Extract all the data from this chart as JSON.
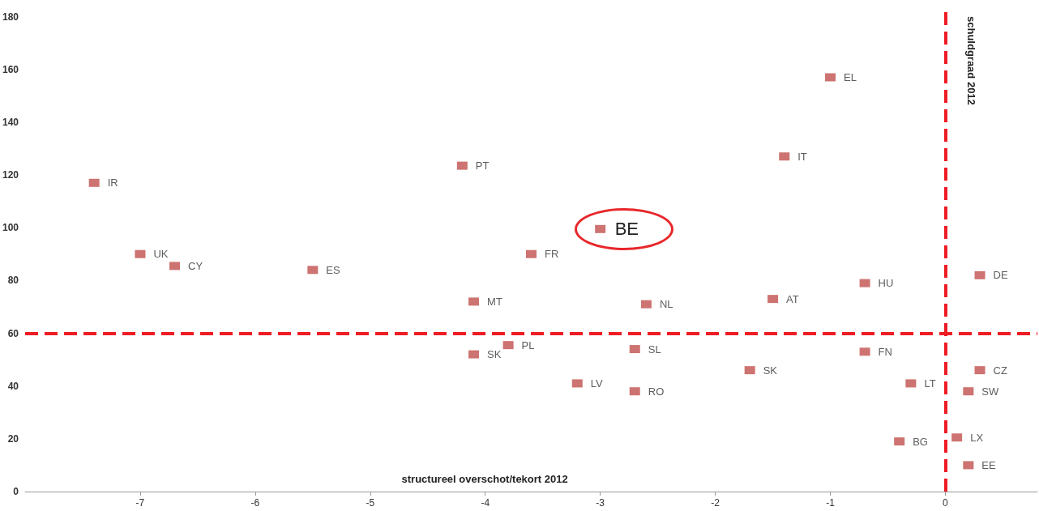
{
  "chart_data": {
    "type": "scatter",
    "xlabel": "structureel overschot/tekort 2012",
    "ylabel": "schuldgraad 2012",
    "xlim": [
      -8,
      0.8
    ],
    "xticks": [
      -7,
      -6,
      -5,
      -4,
      -3,
      -2,
      -1,
      0
    ],
    "ylim": [
      0,
      182
    ],
    "yticks": [
      0,
      20,
      40,
      60,
      80,
      100,
      120,
      140,
      160,
      180
    ],
    "grid": false,
    "legend": false,
    "marker": "square",
    "ref_lines": [
      {
        "axis": "y",
        "value": 60,
        "color": "#ee1c24",
        "line_style": "dashed"
      },
      {
        "axis": "x",
        "value": 0,
        "color": "#ee1c24",
        "line_style": "dashed"
      }
    ],
    "annotations": [
      {
        "text": "BE",
        "x": -3,
        "y": 99.5
      }
    ],
    "series": [
      {
        "name": "IR",
        "color": "#c0504d",
        "x": [
          -7.4
        ],
        "values": [
          117
        ]
      },
      {
        "name": "UK",
        "color": "#c0504d",
        "x": [
          -7.0
        ],
        "values": [
          90
        ]
      },
      {
        "name": "CY",
        "color": "#c0504d",
        "x": [
          -6.7
        ],
        "values": [
          85.5
        ]
      },
      {
        "name": "ES",
        "color": "#c0504d",
        "x": [
          -5.5
        ],
        "values": [
          84
        ]
      },
      {
        "name": "PT",
        "color": "#c0504d",
        "x": [
          -4.2
        ],
        "values": [
          123.5
        ]
      },
      {
        "name": "MT",
        "color": "#c0504d",
        "x": [
          -4.1
        ],
        "values": [
          72
        ]
      },
      {
        "name": "SK",
        "color": "#c0504d",
        "x": [
          -4.1
        ],
        "values": [
          52
        ]
      },
      {
        "name": "PL",
        "color": "#c0504d",
        "x": [
          -3.8
        ],
        "values": [
          55.5
        ]
      },
      {
        "name": "FR",
        "color": "#c0504d",
        "x": [
          -3.6
        ],
        "values": [
          90
        ]
      },
      {
        "color": "#c0504d",
        "x": [
          -3.0
        ],
        "values": [
          99.5
        ]
      },
      {
        "name": "LV",
        "color": "#c0504d",
        "x": [
          -3.2
        ],
        "values": [
          41
        ]
      },
      {
        "name": "RO",
        "color": "#c0504d",
        "x": [
          -2.7
        ],
        "values": [
          38
        ]
      },
      {
        "name": "SL",
        "color": "#c0504d",
        "x": [
          -2.7
        ],
        "values": [
          54
        ]
      },
      {
        "name": "NL",
        "color": "#c0504d",
        "x": [
          -2.6
        ],
        "values": [
          71
        ]
      },
      {
        "name": "SK",
        "color": "#c0504d",
        "x": [
          -1.7
        ],
        "values": [
          46
        ]
      },
      {
        "name": "AT",
        "color": "#c0504d",
        "x": [
          -1.5
        ],
        "values": [
          73
        ]
      },
      {
        "name": "IT",
        "color": "#c0504d",
        "x": [
          -1.4
        ],
        "values": [
          127
        ]
      },
      {
        "name": "EL",
        "color": "#c0504d",
        "x": [
          -1.0
        ],
        "values": [
          157
        ]
      },
      {
        "name": "HU",
        "color": "#c0504d",
        "x": [
          -0.7
        ],
        "values": [
          79
        ]
      },
      {
        "name": "FN",
        "color": "#c0504d",
        "x": [
          -0.7
        ],
        "values": [
          53
        ]
      },
      {
        "name": "LT",
        "color": "#c0504d",
        "x": [
          -0.3
        ],
        "values": [
          41
        ]
      },
      {
        "name": "BG",
        "color": "#c0504d",
        "x": [
          -0.4
        ],
        "values": [
          19
        ]
      },
      {
        "name": "DE",
        "color": "#c0504d",
        "x": [
          0.3
        ],
        "values": [
          82
        ]
      },
      {
        "name": "CZ",
        "color": "#c0504d",
        "x": [
          0.3
        ],
        "values": [
          46
        ]
      },
      {
        "name": "SW",
        "color": "#c0504d",
        "x": [
          0.2
        ],
        "values": [
          38
        ]
      },
      {
        "name": "LX",
        "color": "#c0504d",
        "x": [
          0.1
        ],
        "values": [
          20.5
        ]
      },
      {
        "name": "EE",
        "color": "#c0504d",
        "x": [
          0.2
        ],
        "values": [
          10
        ]
      }
    ]
  }
}
